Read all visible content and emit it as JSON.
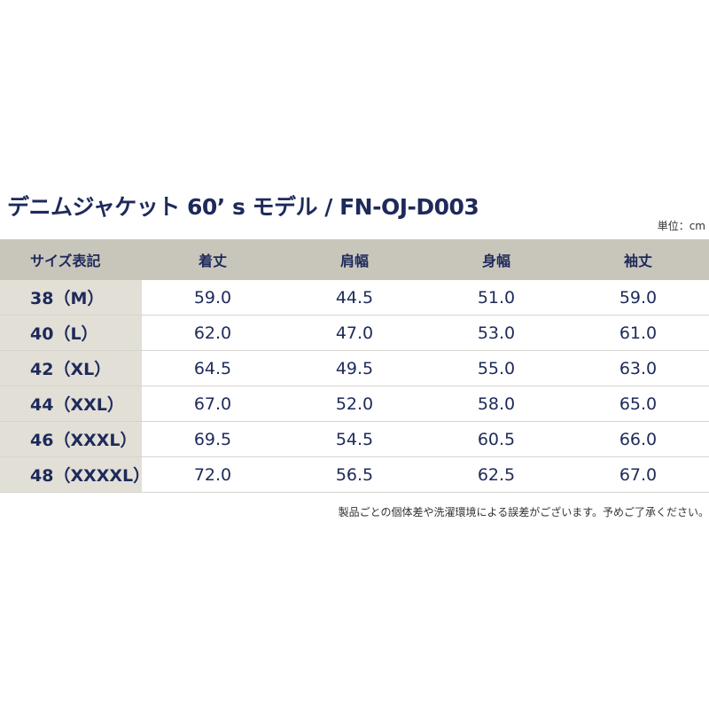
{
  "title": "デニムジャケット 60’ s モデル / FN-OJ-D003",
  "unit": "単位：cm",
  "table": {
    "header": [
      "サイズ表記",
      "着丈",
      "肩幅",
      "身幅",
      "袖丈"
    ],
    "rows": [
      [
        "38（M）",
        "59.0",
        "44.5",
        "51.0",
        "59.0"
      ],
      [
        "40（L）",
        "62.0",
        "47.0",
        "53.0",
        "61.0"
      ],
      [
        "42（XL）",
        "64.5",
        "49.5",
        "55.0",
        "63.0"
      ],
      [
        "44（XXL）",
        "67.0",
        "52.0",
        "58.0",
        "65.0"
      ],
      [
        "46（XXXL）",
        "69.5",
        "54.5",
        "60.5",
        "66.0"
      ],
      [
        "48（XXXXL）",
        "72.0",
        "56.5",
        "62.5",
        "67.0"
      ]
    ]
  },
  "note": "製品ごとの個体差や洗濯環境による誤差がございます。予めご了承ください。"
}
